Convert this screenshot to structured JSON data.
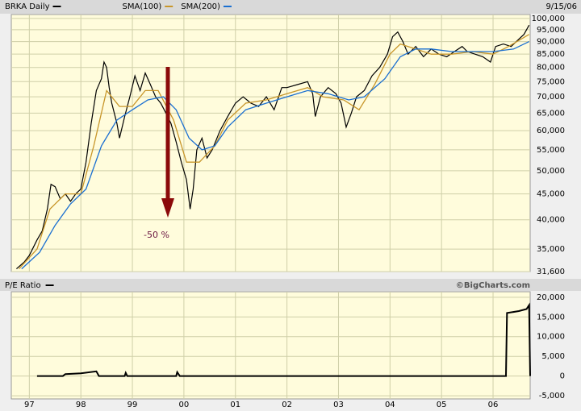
{
  "chart_data": [
    {
      "type": "line",
      "date": "9/15/06",
      "log_scale": true,
      "grid": true,
      "annotation": "-50 %",
      "xlim": [
        1996.65,
        2006.72
      ],
      "ylim": [
        31600,
        101800
      ],
      "yticks": [
        {
          "value": 31600,
          "label": "31,600"
        },
        {
          "value": 35000,
          "label": "35,000"
        },
        {
          "value": 40000,
          "label": "40,000"
        },
        {
          "value": 45000,
          "label": "45,000"
        },
        {
          "value": 50000,
          "label": "50,000"
        },
        {
          "value": 55000,
          "label": "55,000"
        },
        {
          "value": 60000,
          "label": "60,000"
        },
        {
          "value": 65000,
          "label": "65,000"
        },
        {
          "value": 70000,
          "label": "70,000"
        },
        {
          "value": 75000,
          "label": "75,000"
        },
        {
          "value": 80000,
          "label": "80,000"
        },
        {
          "value": 85000,
          "label": "85,000"
        },
        {
          "value": 90000,
          "label": "90,000"
        },
        {
          "value": 95000,
          "label": "95,000"
        },
        {
          "value": 100000,
          "label": "100,000"
        }
      ],
      "series": [
        {
          "name": "BRKA Daily",
          "color": "#000000",
          "x": [
            1996.75,
            1996.9,
            1997.0,
            1997.15,
            1997.25,
            1997.35,
            1997.42,
            1997.5,
            1997.6,
            1997.7,
            1997.8,
            1997.9,
            1998.0,
            1998.1,
            1998.2,
            1998.3,
            1998.4,
            1998.45,
            1998.5,
            1998.55,
            1998.6,
            1998.7,
            1998.75,
            1998.85,
            1998.95,
            1999.05,
            1999.15,
            1999.25,
            1999.35,
            1999.45,
            1999.55,
            1999.65,
            1999.75,
            1999.85,
            1999.95,
            2000.05,
            2000.12,
            2000.18,
            2000.25,
            2000.35,
            2000.45,
            2000.55,
            2000.7,
            2000.85,
            2001.0,
            2001.15,
            2001.3,
            2001.45,
            2001.6,
            2001.75,
            2001.9,
            2002.0,
            2002.2,
            2002.4,
            2002.5,
            2002.55,
            2002.65,
            2002.8,
            2002.95,
            2003.05,
            2003.15,
            2003.25,
            2003.35,
            2003.5,
            2003.65,
            2003.8,
            2003.95,
            2004.05,
            2004.15,
            2004.25,
            2004.35,
            2004.5,
            2004.65,
            2004.8,
            2004.95,
            2005.1,
            2005.25,
            2005.4,
            2005.5,
            2005.65,
            2005.8,
            2005.95,
            2006.05,
            2006.2,
            2006.35,
            2006.5,
            2006.6,
            2006.7
          ],
          "values": [
            32000,
            33000,
            34000,
            36500,
            38000,
            42000,
            47000,
            46500,
            44000,
            45000,
            43500,
            45000,
            46000,
            52000,
            62000,
            72000,
            76000,
            82000,
            80000,
            73000,
            68000,
            62000,
            58000,
            64000,
            70000,
            77000,
            72000,
            78000,
            74000,
            70000,
            68000,
            65000,
            62000,
            57000,
            52000,
            48000,
            42000,
            46000,
            55000,
            58000,
            53000,
            55000,
            60000,
            64000,
            68000,
            70000,
            68000,
            67000,
            70000,
            66000,
            73000,
            73000,
            74000,
            75000,
            71000,
            64000,
            70000,
            73000,
            71000,
            68000,
            61000,
            65000,
            70000,
            72000,
            77000,
            80000,
            85000,
            92000,
            94000,
            90000,
            85000,
            88000,
            84000,
            87000,
            85000,
            84000,
            86000,
            88000,
            86000,
            85000,
            84000,
            82000,
            88000,
            89000,
            88000,
            91000,
            93000,
            97000
          ]
        },
        {
          "name": "SMA(100)",
          "color": "#c8962a",
          "x": [
            1996.8,
            1997.15,
            1997.4,
            1997.7,
            1998.0,
            1998.25,
            1998.5,
            1998.75,
            1999.0,
            1999.25,
            1999.5,
            1999.8,
            2000.05,
            2000.3,
            2000.6,
            2000.85,
            2001.2,
            2001.6,
            2002.0,
            2002.4,
            2002.7,
            2003.1,
            2003.4,
            2003.7,
            2004.0,
            2004.2,
            2004.5,
            2004.8,
            2005.2,
            2005.6,
            2006.0,
            2006.3,
            2006.7
          ],
          "values": [
            32000,
            35000,
            42000,
            45000,
            45000,
            56000,
            72000,
            67000,
            67000,
            72000,
            72000,
            63000,
            52000,
            52000,
            56000,
            63000,
            68000,
            69000,
            71000,
            73000,
            70000,
            69000,
            66000,
            74000,
            85000,
            89000,
            87000,
            85000,
            85000,
            86000,
            85000,
            88000,
            93000
          ]
        },
        {
          "name": "SMA(200)",
          "color": "#1a6fd1",
          "x": [
            1996.85,
            1997.2,
            1997.5,
            1997.8,
            1998.1,
            1998.4,
            1998.7,
            1999.0,
            1999.3,
            1999.6,
            1999.85,
            2000.1,
            2000.35,
            2000.6,
            2000.85,
            2001.2,
            2001.6,
            2002.0,
            2002.4,
            2002.8,
            2003.2,
            2003.5,
            2003.9,
            2004.2,
            2004.5,
            2004.8,
            2005.2,
            2005.6,
            2006.0,
            2006.4,
            2006.7
          ],
          "values": [
            32000,
            34500,
            39000,
            43000,
            46000,
            56000,
            63000,
            66000,
            69000,
            70000,
            66000,
            58000,
            55000,
            56000,
            61000,
            66000,
            68000,
            70000,
            72000,
            71000,
            69000,
            70000,
            76000,
            84000,
            87000,
            87000,
            86000,
            86000,
            86000,
            87000,
            90000
          ]
        }
      ]
    },
    {
      "type": "line",
      "credit": "©BigCharts.com",
      "grid": true,
      "xlim": [
        1996.65,
        2006.72
      ],
      "ylim": [
        -5800,
        21400
      ],
      "xticks": [
        {
          "value": 1997,
          "label": "97"
        },
        {
          "value": 1998,
          "label": "98"
        },
        {
          "value": 1999,
          "label": "99"
        },
        {
          "value": 2000,
          "label": "00"
        },
        {
          "value": 2001,
          "label": "01"
        },
        {
          "value": 2002,
          "label": "02"
        },
        {
          "value": 2003,
          "label": "03"
        },
        {
          "value": 2004,
          "label": "04"
        },
        {
          "value": 2005,
          "label": "05"
        },
        {
          "value": 2006,
          "label": "06"
        }
      ],
      "yticks": [
        {
          "value": -5000,
          "label": "-5,000"
        },
        0,
        {
          "value": 5000,
          "label": "5,000"
        },
        {
          "value": 10000,
          "label": "10,000"
        },
        {
          "value": 15000,
          "label": "15,000"
        },
        {
          "value": 20000,
          "label": "20,000"
        }
      ],
      "series": [
        {
          "name": "P/E Ratio",
          "color": "#000000",
          "x": [
            1997.15,
            1997.65,
            1997.7,
            1998.0,
            1998.3,
            1998.35,
            1998.85,
            1998.87,
            1998.9,
            1999.85,
            1999.87,
            1999.92,
            2006.25,
            2006.27,
            2006.5,
            2006.65,
            2006.7,
            2006.72
          ],
          "values": [
            0,
            0,
            500,
            700,
            1200,
            0,
            0,
            800,
            0,
            0,
            1000,
            0,
            0,
            16000,
            16500,
            17000,
            18000,
            0
          ]
        }
      ]
    }
  ]
}
